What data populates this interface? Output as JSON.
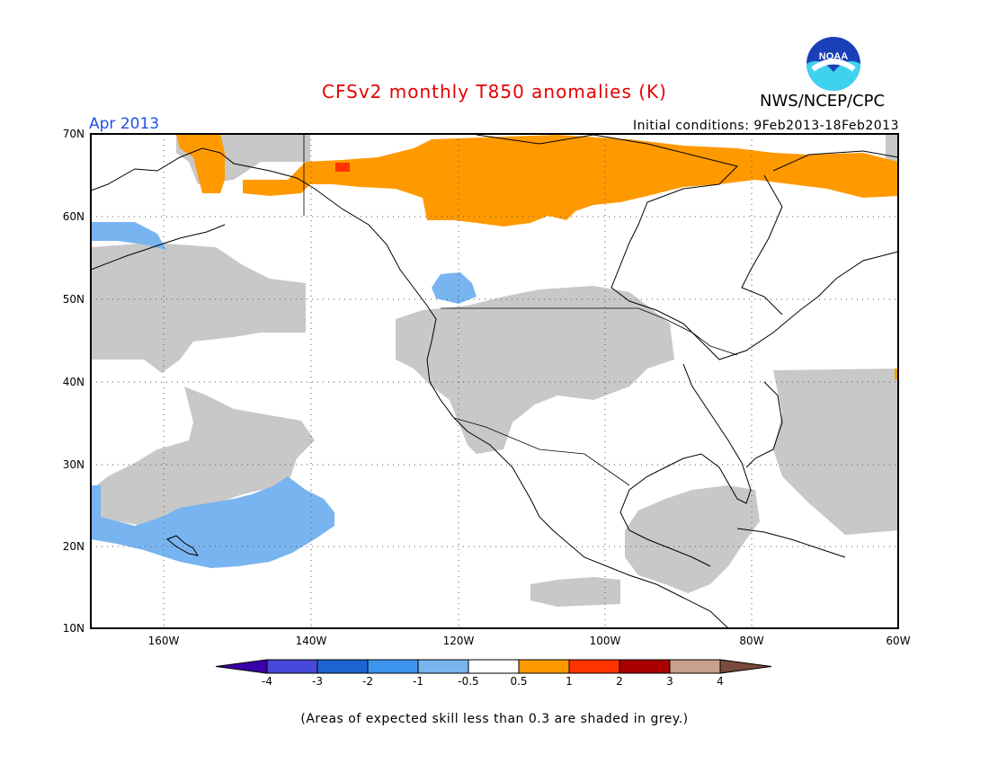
{
  "title": "CFSv2 monthly T850 anomalies (K)",
  "month": "Apr 2013",
  "initial_conditions": "Initial conditions: 9Feb2013-18Feb2013",
  "agency": "NWS/NCEP/CPC",
  "logo_text": "NOAA",
  "footnote": "(Areas of expected skill less than 0.3 are shaded in grey.)",
  "map": {
    "lon_range": [
      -171,
      -60
    ],
    "lat_range": [
      10,
      70
    ],
    "lat_labels": [
      "70N",
      "60N",
      "50N",
      "40N",
      "30N",
      "20N",
      "10N"
    ],
    "lon_labels": [
      "160W",
      "140W",
      "120W",
      "100W",
      "80W",
      "60W"
    ]
  },
  "colorbar": {
    "ticks": [
      "-4",
      "-3",
      "-2",
      "-1",
      "-0.5",
      "0.5",
      "1",
      "2",
      "3",
      "4"
    ],
    "colors": [
      "#3a00a8",
      "#4848d8",
      "#1e64d0",
      "#3c96f0",
      "#78b4f0",
      "#ffffff",
      "#ff9900",
      "#ff3300",
      "#a80000",
      "#c8a08c",
      "#7a4a3a"
    ],
    "skill_shade": "#c8c8c8"
  }
}
